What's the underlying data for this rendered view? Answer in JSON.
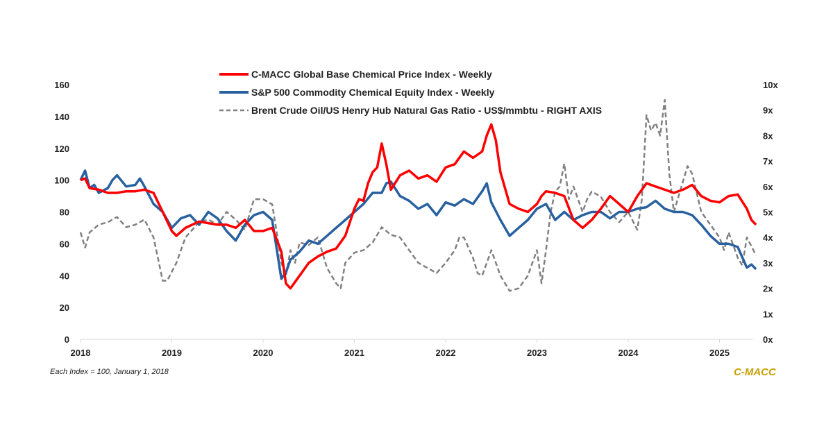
{
  "chart_data": {
    "type": "line",
    "title": "",
    "xlabel": "",
    "ylabel": "",
    "xlim": [
      2018,
      2025.4
    ],
    "ylim": [
      0,
      160
    ],
    "y2lim": [
      0,
      10
    ],
    "x_ticks": [
      "2018",
      "2019",
      "2020",
      "2021",
      "2022",
      "2023",
      "2024",
      "2025"
    ],
    "y_ticks": [
      "0",
      "20",
      "40",
      "60",
      "80",
      "100",
      "120",
      "140",
      "160"
    ],
    "y2_ticks": [
      "0x",
      "1x",
      "2x",
      "3x",
      "4x",
      "5x",
      "6x",
      "7x",
      "8x",
      "9x",
      "10x"
    ],
    "grid": false,
    "legend_placement": "top-center",
    "series": [
      {
        "name": "C-MACC Global Base Chemical Price Index - Weekly",
        "color": "#ff0000",
        "axis": "left",
        "style": "solid",
        "x": [
          2018,
          2018.05,
          2018.1,
          2018.2,
          2018.3,
          2018.4,
          2018.5,
          2018.6,
          2018.7,
          2018.8,
          2018.9,
          2019,
          2019.05,
          2019.15,
          2019.3,
          2019.4,
          2019.5,
          2019.6,
          2019.7,
          2019.8,
          2019.9,
          2020,
          2020.1,
          2020.2,
          2020.25,
          2020.3,
          2020.4,
          2020.5,
          2020.6,
          2020.7,
          2020.8,
          2020.9,
          2021,
          2021.05,
          2021.1,
          2021.15,
          2021.2,
          2021.25,
          2021.3,
          2021.35,
          2021.4,
          2021.5,
          2021.6,
          2021.7,
          2021.8,
          2021.9,
          2022,
          2022.1,
          2022.2,
          2022.3,
          2022.4,
          2022.45,
          2022.5,
          2022.55,
          2022.6,
          2022.7,
          2022.8,
          2022.9,
          2023,
          2023.05,
          2023.1,
          2023.2,
          2023.3,
          2023.4,
          2023.5,
          2023.6,
          2023.7,
          2023.8,
          2023.9,
          2024,
          2024.1,
          2024.2,
          2024.3,
          2024.4,
          2024.5,
          2024.6,
          2024.7,
          2024.8,
          2024.9,
          2025,
          2025.1,
          2025.2,
          2025.3,
          2025.35,
          2025.4
        ],
        "y": [
          100,
          101,
          95,
          94,
          92,
          92,
          93,
          93,
          94,
          92,
          80,
          68,
          65,
          70,
          74,
          73,
          72,
          72,
          70,
          75,
          68,
          68,
          70,
          55,
          35,
          32,
          40,
          48,
          52,
          55,
          57,
          65,
          82,
          88,
          87,
          98,
          105,
          108,
          123,
          110,
          94,
          103,
          106,
          101,
          103,
          99,
          108,
          110,
          118,
          114,
          118,
          128,
          135,
          125,
          105,
          85,
          82,
          80,
          85,
          90,
          93,
          92,
          90,
          75,
          70,
          75,
          82,
          90,
          85,
          80,
          90,
          98,
          96,
          94,
          92,
          94,
          97,
          90,
          87,
          86,
          90,
          91,
          82,
          75,
          72
        ]
      },
      {
        "name": "S&P 500 Commodity Chemical Equity Index - Weekly",
        "color": "#2860a0",
        "axis": "left",
        "style": "solid",
        "x": [
          2018,
          2018.05,
          2018.1,
          2018.15,
          2018.2,
          2018.3,
          2018.35,
          2018.4,
          2018.5,
          2018.6,
          2018.65,
          2018.7,
          2018.8,
          2018.9,
          2019,
          2019.1,
          2019.2,
          2019.3,
          2019.4,
          2019.5,
          2019.6,
          2019.7,
          2019.8,
          2019.9,
          2020,
          2020.1,
          2020.2,
          2020.25,
          2020.3,
          2020.4,
          2020.5,
          2020.6,
          2020.7,
          2020.8,
          2020.9,
          2021,
          2021.1,
          2021.2,
          2021.3,
          2021.35,
          2021.4,
          2021.5,
          2021.6,
          2021.7,
          2021.8,
          2021.9,
          2022,
          2022.1,
          2022.2,
          2022.3,
          2022.4,
          2022.45,
          2022.5,
          2022.6,
          2022.7,
          2022.8,
          2022.9,
          2023,
          2023.1,
          2023.2,
          2023.3,
          2023.4,
          2023.5,
          2023.6,
          2023.7,
          2023.8,
          2023.9,
          2024,
          2024.1,
          2024.2,
          2024.3,
          2024.4,
          2024.5,
          2024.6,
          2024.7,
          2024.8,
          2024.9,
          2025,
          2025.1,
          2025.2,
          2025.3,
          2025.35,
          2025.4
        ],
        "y": [
          100,
          106,
          95,
          97,
          92,
          95,
          100,
          103,
          96,
          97,
          101,
          96,
          85,
          80,
          70,
          76,
          78,
          72,
          80,
          76,
          68,
          62,
          72,
          78,
          80,
          75,
          38,
          42,
          50,
          55,
          62,
          60,
          65,
          70,
          75,
          80,
          85,
          92,
          92,
          98,
          99,
          90,
          87,
          82,
          85,
          78,
          86,
          84,
          88,
          85,
          93,
          98,
          86,
          75,
          65,
          70,
          75,
          82,
          85,
          75,
          80,
          75,
          78,
          80,
          80,
          76,
          80,
          80,
          82,
          83,
          87,
          82,
          80,
          80,
          78,
          72,
          65,
          60,
          60,
          58,
          45,
          47,
          44
        ]
      },
      {
        "name": "Brent Crude Oil/US Henry Hub Natural Gas Ratio - US$/mmbtu - RIGHT AXIS",
        "color": "#808080",
        "axis": "right",
        "style": "dashed",
        "x": [
          2018,
          2018.05,
          2018.1,
          2018.2,
          2018.3,
          2018.4,
          2018.5,
          2018.6,
          2018.7,
          2018.8,
          2018.9,
          2018.95,
          2019.05,
          2019.15,
          2019.3,
          2019.4,
          2019.5,
          2019.6,
          2019.7,
          2019.8,
          2019.9,
          2020,
          2020.1,
          2020.15,
          2020.2,
          2020.25,
          2020.3,
          2020.35,
          2020.4,
          2020.5,
          2020.6,
          2020.7,
          2020.8,
          2020.85,
          2020.9,
          2021,
          2021.1,
          2021.2,
          2021.3,
          2021.4,
          2021.5,
          2021.6,
          2021.7,
          2021.8,
          2021.9,
          2022,
          2022.1,
          2022.15,
          2022.2,
          2022.3,
          2022.35,
          2022.4,
          2022.5,
          2022.6,
          2022.7,
          2022.8,
          2022.9,
          2023,
          2023.05,
          2023.1,
          2023.15,
          2023.2,
          2023.25,
          2023.3,
          2023.35,
          2023.4,
          2023.5,
          2023.55,
          2023.6,
          2023.7,
          2023.8,
          2023.9,
          2024,
          2024.1,
          2024.15,
          2024.2,
          2024.25,
          2024.3,
          2024.35,
          2024.4,
          2024.45,
          2024.5,
          2024.6,
          2024.65,
          2024.7,
          2024.8,
          2024.9,
          2025,
          2025.05,
          2025.1,
          2025.2,
          2025.25,
          2025.3,
          2025.4
        ],
        "y": [
          4.2,
          3.6,
          4.2,
          4.5,
          4.6,
          4.8,
          4.4,
          4.5,
          4.7,
          4.0,
          2.3,
          2.3,
          3.0,
          4.0,
          4.6,
          4.7,
          4.5,
          5.0,
          4.7,
          4.3,
          5.5,
          5.5,
          5.3,
          4.2,
          3.0,
          2.5,
          3.5,
          3.0,
          3.8,
          3.7,
          4.0,
          2.8,
          2.2,
          2.0,
          3.0,
          3.4,
          3.5,
          3.8,
          4.4,
          4.1,
          4.0,
          3.5,
          3.0,
          2.8,
          2.6,
          3.0,
          3.5,
          4.0,
          4.0,
          3.2,
          2.6,
          2.5,
          3.5,
          2.5,
          1.9,
          2.0,
          2.5,
          3.5,
          2.2,
          3.5,
          5.0,
          5.8,
          6.0,
          6.9,
          5.5,
          6.0,
          5.0,
          5.5,
          5.8,
          5.6,
          5.0,
          4.6,
          5.0,
          4.3,
          5.5,
          8.8,
          8.2,
          8.5,
          8.0,
          9.4,
          6.5,
          5.0,
          6.2,
          6.8,
          6.5,
          5.0,
          4.5,
          4.0,
          3.5,
          4.2,
          3.2,
          2.9,
          4.0,
          3.3
        ]
      }
    ]
  },
  "footnote": "Each Index = 100, January 1, 2018",
  "brand": {
    "text": "C-MACC",
    "color": "#c8a000"
  }
}
